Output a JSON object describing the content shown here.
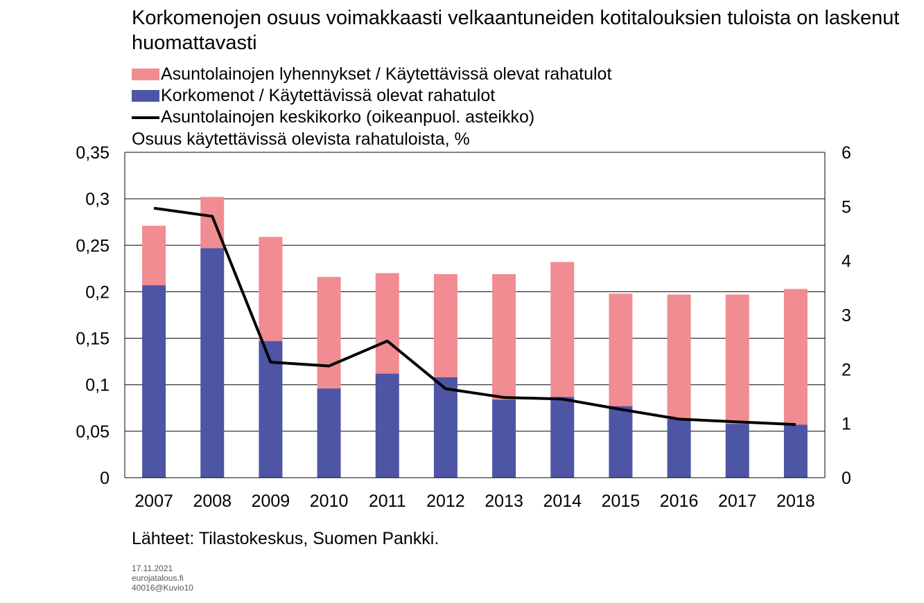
{
  "title": "Korkomenojen osuus voimakkaasti velkaantuneiden kotitalouksien tuloista on laskenut huomattavasti",
  "unit_label": "Osuus käytettävissä olevista rahatuloista, %",
  "source": "Lähteet: Tilastokeskus, Suomen Pankki.",
  "meta": {
    "date": "17.11.2021",
    "site": "eurojatalous.fi",
    "code": "40016@Kuvio10"
  },
  "colors": {
    "lyhennykset": "#f08c92",
    "korkomenot": "#4e55a4",
    "keskikorko": "#000000",
    "grid": "#000000"
  },
  "chart_data": {
    "type": "bar",
    "stacked": true,
    "categories": [
      "2007",
      "2008",
      "2009",
      "2010",
      "2011",
      "2012",
      "2013",
      "2014",
      "2015",
      "2016",
      "2017",
      "2018"
    ],
    "series": [
      {
        "name": "Korkomenot / Käytettävissä olevat rahatulot",
        "type": "bar",
        "axis": "left",
        "values": [
          0.207,
          0.247,
          0.147,
          0.096,
          0.112,
          0.108,
          0.084,
          0.087,
          0.077,
          0.063,
          0.058,
          0.057
        ]
      },
      {
        "name": "Asuntolainojen lyhennykset / Käytettävissä olevat rahatulot",
        "type": "bar",
        "axis": "left",
        "values": [
          0.064,
          0.055,
          0.112,
          0.12,
          0.108,
          0.111,
          0.135,
          0.145,
          0.121,
          0.134,
          0.139,
          0.146
        ]
      },
      {
        "name": "Asuntolainojen keskikorko (oikeanpuol. asteikko)",
        "type": "line",
        "axis": "right",
        "values": [
          4.97,
          4.82,
          2.13,
          2.06,
          2.52,
          1.64,
          1.48,
          1.45,
          1.26,
          1.08,
          1.03,
          0.98
        ]
      }
    ],
    "legend_order": [
      1,
      0,
      2
    ],
    "ylim_left": [
      0,
      0.35
    ],
    "yticks_left": [
      "0",
      "0,05",
      "0,1",
      "0,15",
      "0,2",
      "0,25",
      "0,3",
      "0,35"
    ],
    "ylim_right": [
      0,
      6
    ],
    "yticks_right": [
      "0",
      "1",
      "2",
      "3",
      "4",
      "5",
      "6"
    ],
    "grid": true,
    "legend_position": "top-left"
  }
}
